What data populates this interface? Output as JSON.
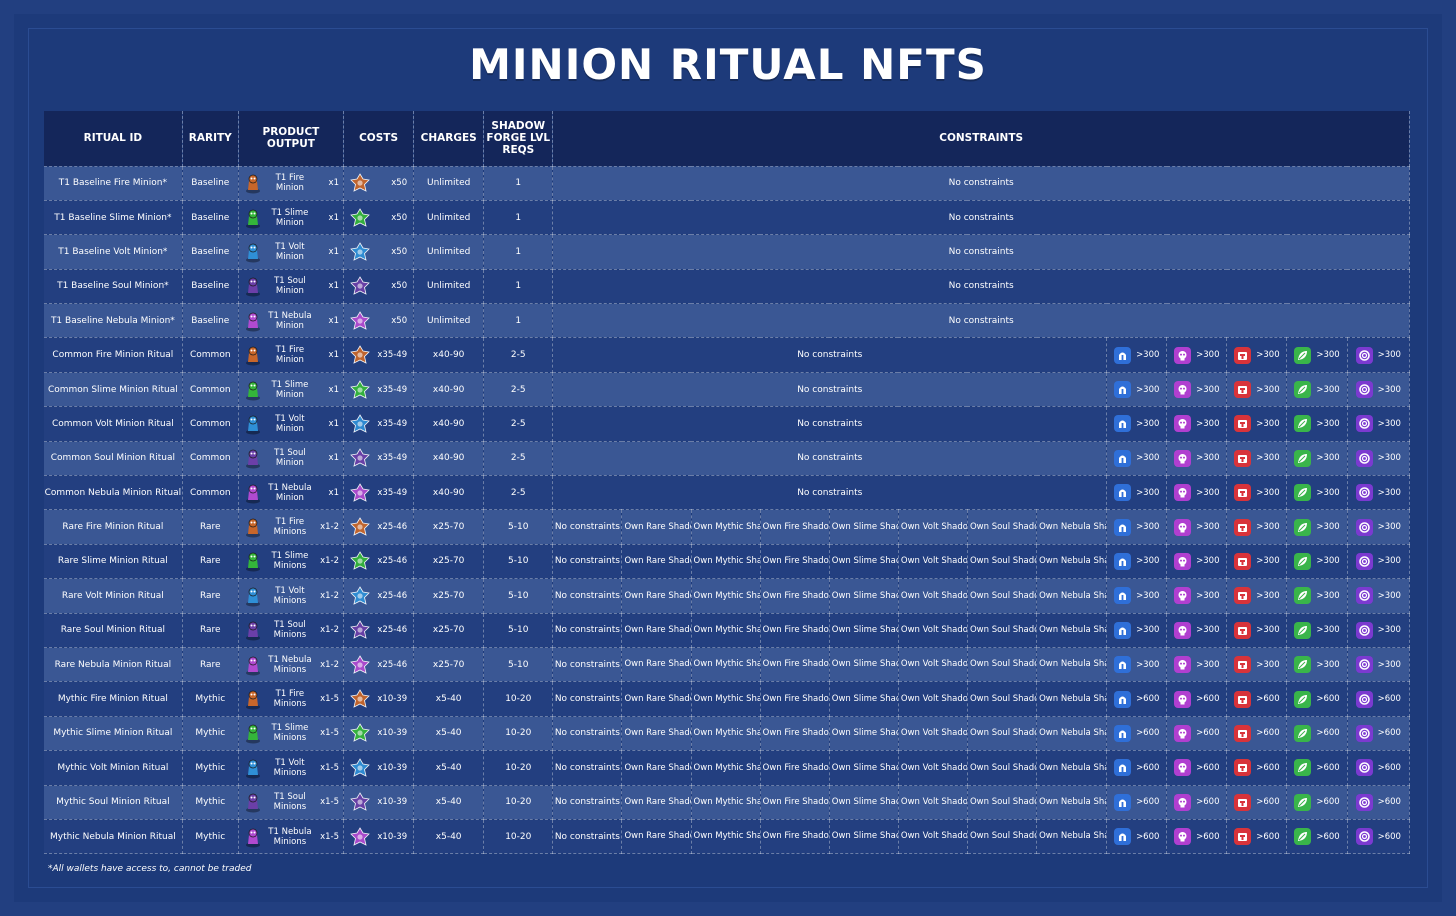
{
  "title": "MINION RITUAL NFTS",
  "colors": {
    "background": "#1e3a78",
    "header": "#14265a",
    "row_shade": "#3a5794",
    "row_plain": "#233f80",
    "fire": "#c8662a",
    "slime": "#34b53a",
    "volt": "#2f8fd6",
    "soul": "#6b3fa8",
    "nebula": "#b04ad0"
  },
  "headers": {
    "ritual_id": "RITUAL ID",
    "rarity": "RARITY",
    "product_output": "PRODUCT OUTPUT",
    "costs": "COSTS",
    "charges": "CHARGES",
    "shadow_forge": "SHADOW FORGE LVL REQS",
    "constraints": "CONSTRAINTS"
  },
  "resource_icons": [
    "helmet-icon",
    "skull-icon",
    "chest-icon",
    "leaf-icon",
    "swirl-icon"
  ],
  "rows": [
    {
      "id": "T1 Baseline Fire Minion*",
      "rarity": "Baseline",
      "element": "fire",
      "product": "T1 Fire Minion",
      "qty": "x1",
      "cost": "x50",
      "charges": "Unlimited",
      "lvl": "1",
      "constraint_text": "No constraints"
    },
    {
      "id": "T1 Baseline Slime Minion*",
      "rarity": "Baseline",
      "element": "slime",
      "product": "T1 Slime Minion",
      "qty": "x1",
      "cost": "x50",
      "charges": "Unlimited",
      "lvl": "1",
      "constraint_text": "No constraints"
    },
    {
      "id": "T1 Baseline Volt Minion*",
      "rarity": "Baseline",
      "element": "volt",
      "product": "T1 Volt Minion",
      "qty": "x1",
      "cost": "x50",
      "charges": "Unlimited",
      "lvl": "1",
      "constraint_text": "No constraints"
    },
    {
      "id": "T1 Baseline Soul Minion*",
      "rarity": "Baseline",
      "element": "soul",
      "product": "T1 Soul Minion",
      "qty": "x1",
      "cost": "x50",
      "charges": "Unlimited",
      "lvl": "1",
      "constraint_text": "No constraints"
    },
    {
      "id": "T1 Baseline Nebula Minion*",
      "rarity": "Baseline",
      "element": "nebula",
      "product": "T1 Nebula Minion",
      "qty": "x1",
      "cost": "x50",
      "charges": "Unlimited",
      "lvl": "1",
      "constraint_text": "No constraints"
    },
    {
      "id": "Common Fire Minion Ritual",
      "rarity": "Common",
      "element": "fire",
      "product": "T1 Fire Minion",
      "qty": "x1",
      "cost": "x35-49",
      "charges": "x40-90",
      "lvl": "2-5",
      "constraint_text": "No constraints",
      "res": [
        ">300",
        ">300",
        ">300",
        ">300",
        ">300"
      ]
    },
    {
      "id": "Common Slime Minion Ritual",
      "rarity": "Common",
      "element": "slime",
      "product": "T1 Slime Minion",
      "qty": "x1",
      "cost": "x35-49",
      "charges": "x40-90",
      "lvl": "2-5",
      "constraint_text": "No constraints",
      "res": [
        ">300",
        ">300",
        ">300",
        ">300",
        ">300"
      ]
    },
    {
      "id": "Common Volt Minion Ritual",
      "rarity": "Common",
      "element": "volt",
      "product": "T1 Volt Minion",
      "qty": "x1",
      "cost": "x35-49",
      "charges": "x40-90",
      "lvl": "2-5",
      "constraint_text": "No constraints",
      "res": [
        ">300",
        ">300",
        ">300",
        ">300",
        ">300"
      ]
    },
    {
      "id": "Common Soul Minion Ritual",
      "rarity": "Common",
      "element": "soul",
      "product": "T1 Soul Minion",
      "qty": "x1",
      "cost": "x35-49",
      "charges": "x40-90",
      "lvl": "2-5",
      "constraint_text": "No constraints",
      "res": [
        ">300",
        ">300",
        ">300",
        ">300",
        ">300"
      ]
    },
    {
      "id": "Common Nebula Minion Ritual",
      "rarity": "Common",
      "element": "nebula",
      "product": "T1 Nebula Minion",
      "qty": "x1",
      "cost": "x35-49",
      "charges": "x40-90",
      "lvl": "2-5",
      "constraint_text": "No constraints",
      "res": [
        ">300",
        ">300",
        ">300",
        ">300",
        ">300"
      ]
    },
    {
      "id": "Rare Fire Minion Ritual",
      "rarity": "Rare",
      "element": "fire",
      "product": "T1 Fire Minions",
      "qty": "x1-2",
      "cost": "x25-46",
      "charges": "x25-70",
      "lvl": "5-10",
      "constraint_text": "No constraints",
      "sc": [
        "Own Rare Shadowcorn",
        "Own Mythic Shadowcorn",
        "Own Fire Shadowcorn",
        "Own Slime Shadowcorn",
        "Own Volt Shadowcorn",
        "Own Soul Shadowcorn",
        "Own Nebula Shadowcorn"
      ],
      "res": [
        ">300",
        ">300",
        ">300",
        ">300",
        ">300"
      ]
    },
    {
      "id": "Rare Slime Minion Ritual",
      "rarity": "Rare",
      "element": "slime",
      "product": "T1 Slime Minions",
      "qty": "x1-2",
      "cost": "x25-46",
      "charges": "x25-70",
      "lvl": "5-10",
      "constraint_text": "No constraints",
      "sc": [
        "Own Rare Shadowcorn",
        "Own Mythic Shadowcorn",
        "Own Fire Shadowcorn",
        "Own Slime Shadowcorn",
        "Own Volt Shadowcorn",
        "Own Soul Shadowcorn",
        "Own Nebula Shadowcorn"
      ],
      "res": [
        ">300",
        ">300",
        ">300",
        ">300",
        ">300"
      ]
    },
    {
      "id": "Rare Volt Minion Ritual",
      "rarity": "Rare",
      "element": "volt",
      "product": "T1 Volt Minions",
      "qty": "x1-2",
      "cost": "x25-46",
      "charges": "x25-70",
      "lvl": "5-10",
      "constraint_text": "No constraints",
      "sc": [
        "Own Rare Shadowcorn",
        "Own Mythic Shadowcorn",
        "Own Fire Shadowcorn",
        "Own Slime Shadowcorn",
        "Own Volt Shadowcorn",
        "Own Soul Shadowcorn",
        "Own Nebula Shadowcorn"
      ],
      "res": [
        ">300",
        ">300",
        ">300",
        ">300",
        ">300"
      ]
    },
    {
      "id": "Rare Soul Minion Ritual",
      "rarity": "Rare",
      "element": "soul",
      "product": "T1 Soul Minions",
      "qty": "x1-2",
      "cost": "x25-46",
      "charges": "x25-70",
      "lvl": "5-10",
      "constraint_text": "No constraints",
      "sc": [
        "Own Rare Shadowcorn",
        "Own Mythic Shadowcorn",
        "Own Fire Shadowcorn",
        "Own Slime Shadowcorn",
        "Own Volt Shadowcorn",
        "Own Soul Shadowcorn",
        "Own Nebula Shadowcorn"
      ],
      "res": [
        ">300",
        ">300",
        ">300",
        ">300",
        ">300"
      ]
    },
    {
      "id": "Rare Nebula Minion Ritual",
      "rarity": "Rare",
      "element": "nebula",
      "product": "T1 Nebula Minions",
      "qty": "x1-2",
      "cost": "x25-46",
      "charges": "x25-70",
      "lvl": "5-10",
      "constraint_text": "No constraints",
      "sc": [
        "Own Rare Shadowcorn",
        "Own Mythic Shadowcorn",
        "Own Fire Shadowcorn",
        "Own Slime Shadowcorn",
        "Own Volt Shadowcorn",
        "Own Soul Shadowcorn",
        "Own Nebula Shadowcorn"
      ],
      "res": [
        ">300",
        ">300",
        ">300",
        ">300",
        ">300"
      ]
    },
    {
      "id": "Mythic Fire Minion Ritual",
      "rarity": "Mythic",
      "element": "fire",
      "product": "T1 Fire Minions",
      "qty": "x1-5",
      "cost": "x10-39",
      "charges": "x5-40",
      "lvl": "10-20",
      "constraint_text": "No constraints",
      "sc": [
        "Own Rare Shadowcorn",
        "Own Mythic Shadowcorn",
        "Own Fire Shadowcorn",
        "Own Slime Shadowcorn",
        "Own Volt Shadowcorn",
        "Own Soul Shadowcorn",
        "Own Nebula Shadowcorn"
      ],
      "res": [
        ">600",
        ">600",
        ">600",
        ">600",
        ">600"
      ]
    },
    {
      "id": "Mythic Slime Minion Ritual",
      "rarity": "Mythic",
      "element": "slime",
      "product": "T1 Slime Minions",
      "qty": "x1-5",
      "cost": "x10-39",
      "charges": "x5-40",
      "lvl": "10-20",
      "constraint_text": "No constraints",
      "sc": [
        "Own Rare Shadowcorn",
        "Own Mythic Shadowcorn",
        "Own Fire Shadowcorn",
        "Own Slime Shadowcorn",
        "Own Volt Shadowcorn",
        "Own Soul Shadowcorn",
        "Own Nebula Shadowcorn"
      ],
      "res": [
        ">600",
        ">600",
        ">600",
        ">600",
        ">600"
      ]
    },
    {
      "id": "Mythic Volt Minion Ritual",
      "rarity": "Mythic",
      "element": "volt",
      "product": "T1 Volt Minions",
      "qty": "x1-5",
      "cost": "x10-39",
      "charges": "x5-40",
      "lvl": "10-20",
      "constraint_text": "No constraints",
      "sc": [
        "Own Rare Shadowcorn",
        "Own Mythic Shadowcorn",
        "Own Fire Shadowcorn",
        "Own Slime Shadowcorn",
        "Own Volt Shadowcorn",
        "Own Soul Shadowcorn",
        "Own Nebula Shadowcorn"
      ],
      "res": [
        ">600",
        ">600",
        ">600",
        ">600",
        ">600"
      ]
    },
    {
      "id": "Mythic Soul Minion Ritual",
      "rarity": "Mythic",
      "element": "soul",
      "product": "T1 Soul Minions",
      "qty": "x1-5",
      "cost": "x10-39",
      "charges": "x5-40",
      "lvl": "10-20",
      "constraint_text": "No constraints",
      "sc": [
        "Own Rare Shadowcorn",
        "Own Mythic Shadowcorn",
        "Own Fire Shadowcorn",
        "Own Slime Shadowcorn",
        "Own Volt Shadowcorn",
        "Own Soul Shadowcorn",
        "Own Nebula Shadowcorn"
      ],
      "res": [
        ">600",
        ">600",
        ">600",
        ">600",
        ">600"
      ]
    },
    {
      "id": "Mythic Nebula Minion Ritual",
      "rarity": "Mythic",
      "element": "nebula",
      "product": "T1 Nebula Minions",
      "qty": "x1-5",
      "cost": "x10-39",
      "charges": "x5-40",
      "lvl": "10-20",
      "constraint_text": "No constraints",
      "sc": [
        "Own Rare Shadowcorn",
        "Own Mythic Shadowcorn",
        "Own Fire Shadowcorn",
        "Own Slime Shadowcorn",
        "Own Volt Shadowcorn",
        "Own Soul Shadowcorn",
        "Own Nebula Shadowcorn"
      ],
      "res": [
        ">600",
        ">600",
        ">600",
        ">600",
        ">600"
      ]
    }
  ],
  "footnote": "*All wallets have access to, cannot be traded"
}
